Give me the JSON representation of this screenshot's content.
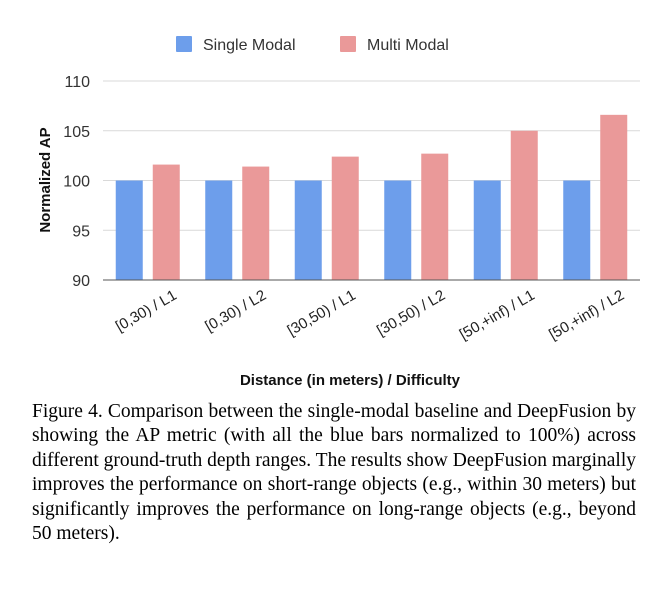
{
  "chart_data": {
    "type": "bar",
    "categories": [
      "[0,30) / L1",
      "[0,30) / L2",
      "[30,50) / L1",
      "[30,50) / L2",
      "[50,+inf) / L1",
      "[50,+inf) / L2"
    ],
    "series": [
      {
        "name": "Single Modal",
        "color": "#6d9eeb",
        "values": [
          100,
          100,
          100,
          100,
          100,
          100
        ]
      },
      {
        "name": "Multi Modal",
        "color": "#ea9999",
        "values": [
          101.6,
          101.4,
          102.4,
          102.7,
          105.0,
          106.6
        ]
      }
    ],
    "xlabel": "Distance (in meters) / Difficulty",
    "ylabel": "Normalized AP",
    "ylim": [
      90,
      110
    ],
    "yticks": [
      90,
      95,
      100,
      105,
      110
    ],
    "grid": true,
    "legend_position": "top-center"
  },
  "caption": "Figure 4.  Comparison between the single-modal baseline and DeepFusion by showing the AP metric (with all the blue bars normalized to 100%) across different ground-truth depth ranges. The results show DeepFusion marginally improves the performance on short-range objects (e.g., within 30 meters) but significantly improves the performance on long-range objects (e.g., beyond 50 meters)."
}
